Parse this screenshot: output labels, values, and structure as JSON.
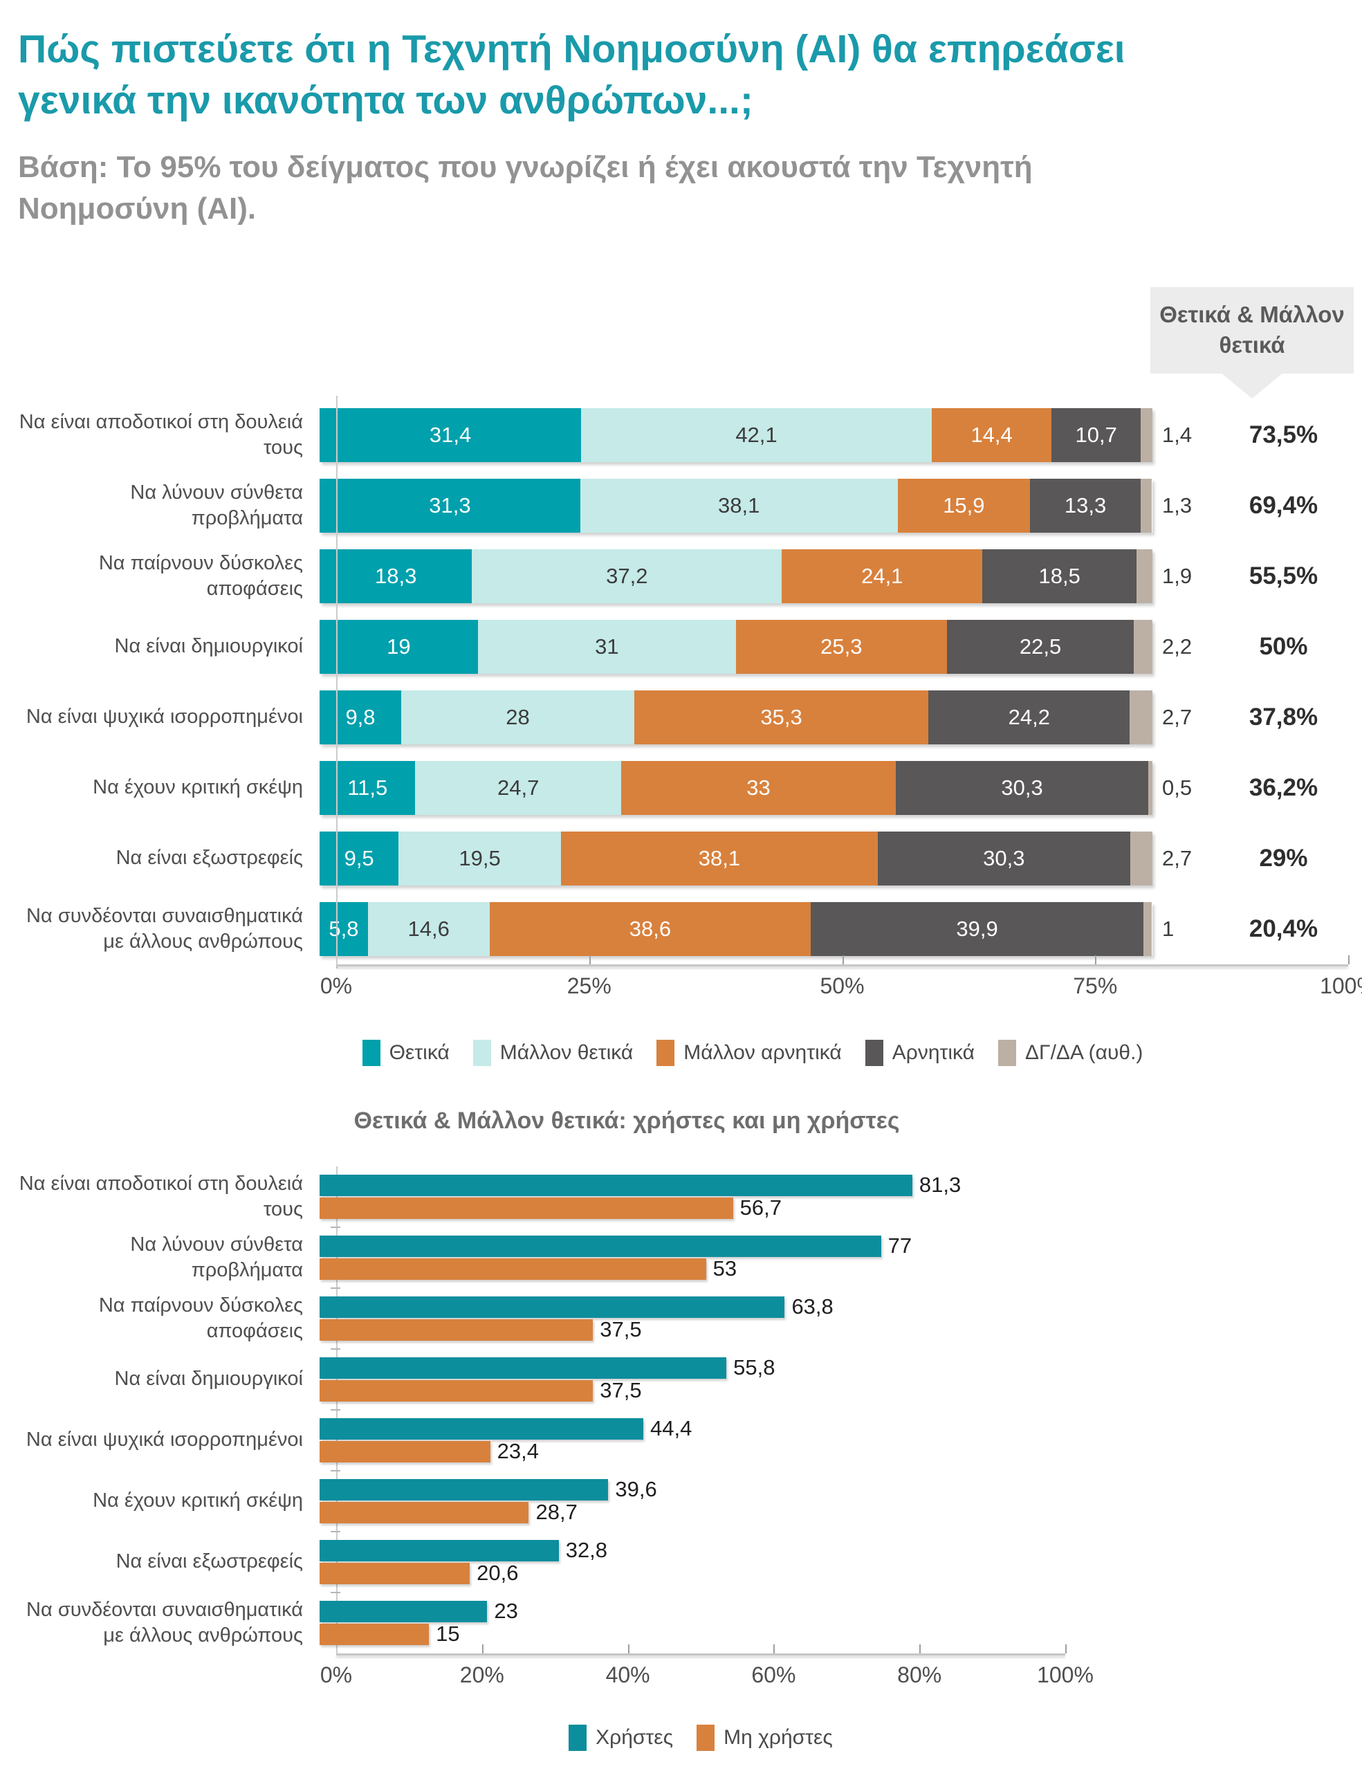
{
  "header": {
    "title": "Πώς πιστεύετε ότι η Τεχνητή Νοημοσύνη (AI) θα επηρεάσει γενικά την ικανότητα των ανθρώπων...;",
    "subtitle": "Βάση: Το 95% του δείγματος που γνωρίζει ή έχει ακουστά την Τεχνητή Νοημοσύνη (AI)."
  },
  "callout": {
    "label": "Θετικά & Μάλλον θετικά"
  },
  "colors": {
    "title_teal": "#1A9AAA",
    "positive": "#00A0AC",
    "rather_positive": "#C5EAE8",
    "rather_negative": "#D8813D",
    "negative": "#595757",
    "dk": "#BCB0A5",
    "users": "#0D8E9D",
    "non_users": "#D8813D"
  },
  "chart_data": [
    {
      "type": "bar",
      "stacked": true,
      "orientation": "horizontal",
      "title": "",
      "xlim": [
        0,
        100
      ],
      "x_ticks": [
        "0%",
        "25%",
        "50%",
        "75%",
        "100%"
      ],
      "legend_position": "bottom",
      "categories": [
        "Να είναι αποδοτικοί στη δουλειά τους",
        "Να λύνουν σύνθετα προβλήματα",
        "Να παίρνουν δύσκολες αποφάσεις",
        "Να είναι δημιουργικοί",
        "Να είναι ψυχικά ισορροπημένοι",
        "Να έχουν κριτική σκέψη",
        "Να είναι εξωστρεφείς",
        "Να συνδέονται συναισθηματικά με άλλους ανθρώπους"
      ],
      "series": [
        {
          "name": "Θετικά",
          "color": "#00A0AC",
          "text_color": "#FFFFFF",
          "values": [
            31.4,
            31.3,
            18.3,
            19,
            9.8,
            11.5,
            9.5,
            5.8
          ],
          "display": [
            "31,4",
            "31,3",
            "18,3",
            "19",
            "9,8",
            "11,5",
            "9,5",
            "5,8"
          ]
        },
        {
          "name": "Μάλλον θετικά",
          "color": "#C5EAE8",
          "text_color": "#3C3C3C",
          "values": [
            42.1,
            38.1,
            37.2,
            31,
            28,
            24.7,
            19.5,
            14.6
          ],
          "display": [
            "42,1",
            "38,1",
            "37,2",
            "31",
            "28",
            "24,7",
            "19,5",
            "14,6"
          ]
        },
        {
          "name": "Μάλλον αρνητικά",
          "color": "#D8813D",
          "text_color": "#FFFFFF",
          "values": [
            14.4,
            15.9,
            24.1,
            25.3,
            35.3,
            33,
            38.1,
            38.6
          ],
          "display": [
            "14,4",
            "15,9",
            "24,1",
            "25,3",
            "35,3",
            "33",
            "38,1",
            "38,6"
          ]
        },
        {
          "name": "Αρνητικά",
          "color": "#595757",
          "text_color": "#FFFFFF",
          "values": [
            10.7,
            13.3,
            18.5,
            22.5,
            24.2,
            30.3,
            30.3,
            39.9
          ],
          "display": [
            "10,7",
            "13,3",
            "18,5",
            "22,5",
            "24,2",
            "30,3",
            "30,3",
            "39,9"
          ]
        },
        {
          "name": "ΔΓ/ΔΑ (αυθ.)",
          "color": "#BCB0A5",
          "text_color": "#3C3C3C",
          "values": [
            1.4,
            1.3,
            1.9,
            2.2,
            2.7,
            0.5,
            2.7,
            1
          ],
          "display": [
            "1,4",
            "1,3",
            "1,9",
            "2,2",
            "2,7",
            "0,5",
            "2,7",
            "1"
          ]
        }
      ],
      "totals_label": "Θετικά & Μάλλον θετικά",
      "totals": [
        "73,5%",
        "69,4%",
        "55,5%",
        "50%",
        "37,8%",
        "36,2%",
        "29%",
        "20,4%"
      ]
    },
    {
      "type": "bar",
      "grouped": true,
      "orientation": "horizontal",
      "title": "Θετικά & Μάλλον θετικά: χρήστες  και μη χρήστες",
      "xlim": [
        0,
        100
      ],
      "x_ticks": [
        "0%",
        "20%",
        "40%",
        "60%",
        "80%",
        "100%"
      ],
      "legend_position": "bottom",
      "categories": [
        "Να είναι αποδοτικοί στη δουλειά τους",
        "Να λύνουν σύνθετα προβλήματα",
        "Να παίρνουν δύσκολες αποφάσεις",
        "Να είναι δημιουργικοί",
        "Να είναι ψυχικά ισορροπημένοι",
        "Να έχουν κριτική σκέψη",
        "Να είναι εξωστρεφείς",
        "Να συνδέονται συναισθηματικά με άλλους ανθρώπους"
      ],
      "series": [
        {
          "name": "Χρήστες",
          "color": "#0D8E9D",
          "values": [
            81.3,
            77,
            63.8,
            55.8,
            44.4,
            39.6,
            32.8,
            23
          ],
          "display": [
            "81,3",
            "77",
            "63,8",
            "55,8",
            "44,4",
            "39,6",
            "32,8",
            "23"
          ]
        },
        {
          "name": "Μη χρήστες",
          "color": "#D8813D",
          "values": [
            56.7,
            53,
            37.5,
            37.5,
            23.4,
            28.7,
            20.6,
            15
          ],
          "display": [
            "56,7",
            "53",
            "37,5",
            "37,5",
            "23,4",
            "28,7",
            "20,6",
            "15"
          ]
        }
      ]
    }
  ]
}
